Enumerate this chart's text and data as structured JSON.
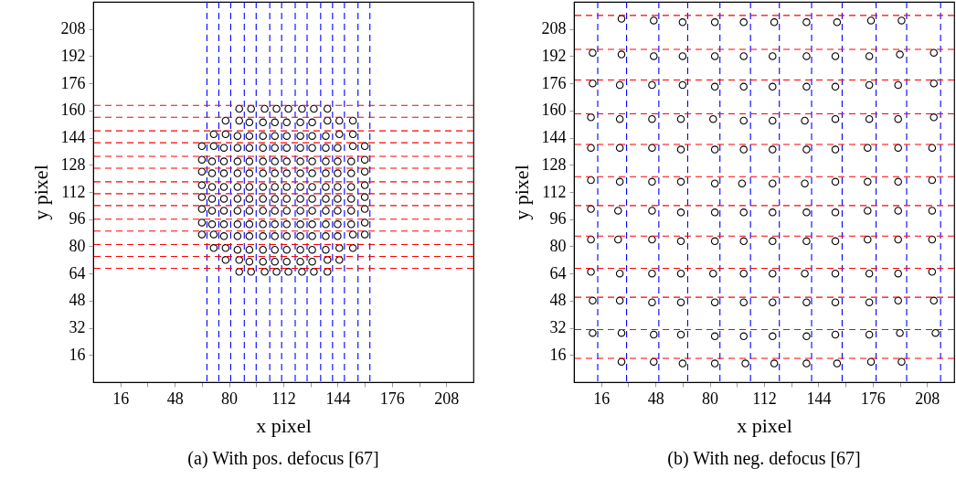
{
  "chart_data": [
    {
      "type": "scatter",
      "title": "(a) With pos. defocus [67]",
      "xlabel": "x pixel",
      "ylabel": "y pixel",
      "xlim": [
        0,
        224
      ],
      "ylim": [
        0,
        224
      ],
      "xticks": [
        16,
        {
          "value": 32,
          "label": null
        },
        48,
        {
          "value": 64,
          "label": null
        },
        80,
        {
          "value": 96,
          "label": null
        },
        112,
        {
          "value": 128,
          "label": null
        },
        144,
        {
          "value": 160,
          "label": null
        },
        176,
        {
          "value": 192,
          "label": null
        },
        208
      ],
      "yticks": [
        16,
        32,
        48,
        64,
        80,
        96,
        112,
        128,
        144,
        160,
        176,
        192,
        208
      ],
      "marker": "circle",
      "series": [
        {
          "color": "#000000",
          "x": [
            86,
            93,
            101,
            108,
            115,
            123,
            130,
            138,
            78,
            86,
            92,
            100,
            107,
            114,
            122,
            129,
            138,
            145,
            153,
            71,
            78,
            85,
            92,
            100,
            107,
            114,
            122,
            129,
            137,
            145,
            153,
            64,
            71,
            77,
            85,
            92,
            100,
            107,
            114,
            122,
            129,
            137,
            144,
            153,
            160,
            64,
            70,
            77,
            85,
            92,
            100,
            107,
            114,
            122,
            129,
            137,
            144,
            152,
            160,
            64,
            70,
            77,
            85,
            92,
            100,
            107,
            114,
            122,
            129,
            137,
            144,
            152,
            160,
            64,
            70,
            77,
            85,
            92,
            100,
            107,
            114,
            122,
            129,
            137,
            144,
            152,
            160,
            64,
            70,
            77,
            85,
            92,
            100,
            107,
            114,
            122,
            129,
            137,
            144,
            152,
            160,
            64,
            70,
            77,
            85,
            92,
            100,
            107,
            114,
            122,
            129,
            137,
            144,
            152,
            160,
            64,
            70,
            77,
            85,
            92,
            100,
            107,
            114,
            122,
            129,
            137,
            144,
            152,
            160,
            64,
            71,
            77,
            85,
            92,
            100,
            107,
            114,
            122,
            129,
            137,
            144,
            153,
            160,
            71,
            78,
            85,
            92,
            100,
            107,
            114,
            122,
            129,
            137,
            145,
            153,
            78,
            86,
            92,
            100,
            107,
            114,
            122,
            129,
            138,
            145,
            86,
            93,
            101,
            108,
            115,
            123,
            130,
            138
          ],
          "values": [
            161,
            161,
            161,
            161,
            161,
            161,
            161,
            161,
            154,
            154,
            153,
            153,
            153,
            153,
            153,
            153,
            154,
            154,
            154,
            146,
            146,
            145,
            145,
            145,
            145,
            145,
            145,
            145,
            145,
            146,
            146,
            139,
            139,
            138,
            138,
            138,
            138,
            138,
            138,
            138,
            138,
            138,
            138,
            139,
            139,
            131,
            130,
            130,
            130,
            130,
            130,
            130,
            130,
            130,
            130,
            130,
            130,
            130,
            131,
            124,
            123,
            123,
            123,
            123,
            123,
            123,
            123,
            123,
            123,
            123,
            123,
            123,
            124,
            116,
            115,
            115,
            115,
            115,
            115,
            115,
            115,
            115,
            115,
            115,
            115,
            115,
            116,
            109,
            108,
            108,
            108,
            108,
            108,
            108,
            108,
            108,
            108,
            108,
            108,
            108,
            109,
            102,
            101,
            101,
            101,
            101,
            101,
            101,
            101,
            101,
            101,
            101,
            101,
            101,
            102,
            94,
            93,
            93,
            93,
            93,
            93,
            93,
            93,
            93,
            93,
            93,
            93,
            93,
            94,
            87,
            87,
            86,
            86,
            86,
            86,
            86,
            86,
            86,
            86,
            86,
            86,
            87,
            87,
            79,
            79,
            78,
            78,
            78,
            78,
            78,
            78,
            78,
            78,
            79,
            79,
            72,
            72,
            71,
            71,
            71,
            71,
            71,
            71,
            72,
            72,
            65,
            65,
            65,
            65,
            65,
            65,
            65,
            65
          ]
        }
      ],
      "ref_lines": [
        {
          "axis": "x",
          "value": 67,
          "color": "#0000ff",
          "line_style": "dashed"
        },
        {
          "axis": "x",
          "value": 74,
          "color": "#0000ff",
          "line_style": "dashed"
        },
        {
          "axis": "x",
          "value": 81,
          "color": "#0000ff",
          "line_style": "dashed"
        },
        {
          "axis": "x",
          "value": 89,
          "color": "#0000ff",
          "line_style": "dashed"
        },
        {
          "axis": "x",
          "value": 96,
          "color": "#0000ff",
          "line_style": "dashed"
        },
        {
          "axis": "x",
          "value": 104,
          "color": "#0000ff",
          "line_style": "dashed"
        },
        {
          "axis": "x",
          "value": 111,
          "color": "#0000ff",
          "line_style": "dashed"
        },
        {
          "axis": "x",
          "value": 119,
          "color": "#0000ff",
          "line_style": "dashed"
        },
        {
          "axis": "x",
          "value": 126,
          "color": "#0000ff",
          "line_style": "dashed"
        },
        {
          "axis": "x",
          "value": 134,
          "color": "#0000ff",
          "line_style": "dashed"
        },
        {
          "axis": "x",
          "value": 141,
          "color": "#0000ff",
          "line_style": "dashed"
        },
        {
          "axis": "x",
          "value": 148,
          "color": "#0000ff",
          "line_style": "dashed"
        },
        {
          "axis": "x",
          "value": 156,
          "color": "#0000ff",
          "line_style": "dashed"
        },
        {
          "axis": "x",
          "value": 163,
          "color": "#0000ff",
          "line_style": "dashed"
        },
        {
          "axis": "y",
          "value": 67,
          "color": "#ff0000",
          "line_style": "dashed"
        },
        {
          "axis": "y",
          "value": 74,
          "color": "#ff0000",
          "line_style": "dashed"
        },
        {
          "axis": "y",
          "value": 81,
          "color": "#ff0000",
          "line_style": "dashed"
        },
        {
          "axis": "y",
          "value": 89,
          "color": "#ff0000",
          "line_style": "dashed"
        },
        {
          "axis": "y",
          "value": 96,
          "color": "#ff0000",
          "line_style": "dashed"
        },
        {
          "axis": "y",
          "value": 104,
          "color": "#ff0000",
          "line_style": "dashed"
        },
        {
          "axis": "y",
          "value": 111,
          "color": "#ff0000",
          "line_style": "dashed"
        },
        {
          "axis": "y",
          "value": 118,
          "color": "#ff0000",
          "line_style": "dashed"
        },
        {
          "axis": "y",
          "value": 126,
          "color": "#ff0000",
          "line_style": "dashed"
        },
        {
          "axis": "y",
          "value": 133,
          "color": "#ff0000",
          "line_style": "dashed"
        },
        {
          "axis": "y",
          "value": 141,
          "color": "#ff0000",
          "line_style": "dashed"
        },
        {
          "axis": "y",
          "value": 148,
          "color": "#ff0000",
          "line_style": "dashed"
        },
        {
          "axis": "y",
          "value": 156,
          "color": "#ff0000",
          "line_style": "dashed"
        },
        {
          "axis": "y",
          "value": 163,
          "color": "#ff0000",
          "line_style": "dashed"
        }
      ]
    },
    {
      "type": "scatter",
      "title": "(b) With neg. defocus [67]",
      "xlabel": "x pixel",
      "ylabel": "y pixel",
      "xlim": [
        0,
        224
      ],
      "ylim": [
        0,
        224
      ],
      "xticks": [
        16,
        {
          "value": 32,
          "label": null
        },
        48,
        {
          "value": 64,
          "label": null
        },
        80,
        {
          "value": 96,
          "label": null
        },
        112,
        {
          "value": 128,
          "label": null
        },
        144,
        {
          "value": 160,
          "label": null
        },
        176,
        {
          "value": 192,
          "label": null
        },
        208
      ],
      "yticks": [
        16,
        32,
        48,
        64,
        80,
        96,
        112,
        128,
        144,
        160,
        176,
        192,
        208
      ],
      "marker": "circle",
      "series": [
        {
          "color": "#000000",
          "x": [
            28,
            47,
            64,
            83,
            100,
            118,
            137,
            155,
            175,
            193,
            11,
            28,
            47,
            64,
            83,
            100,
            117,
            137,
            154,
            174,
            192,
            212,
            11,
            27,
            46,
            64,
            83,
            100,
            117,
            137,
            154,
            174,
            191,
            212,
            10,
            27,
            46,
            63,
            82,
            100,
            117,
            136,
            154,
            174,
            191,
            212,
            10,
            27,
            46,
            63,
            83,
            100,
            117,
            137,
            154,
            173,
            191,
            211,
            10,
            27,
            46,
            63,
            83,
            99,
            117,
            136,
            154,
            173,
            191,
            211,
            10,
            26,
            46,
            63,
            83,
            100,
            117,
            137,
            154,
            173,
            191,
            211,
            10,
            26,
            46,
            63,
            83,
            100,
            117,
            137,
            154,
            173,
            191,
            211,
            10,
            27,
            46,
            63,
            82,
            100,
            117,
            136,
            154,
            174,
            191,
            211,
            11,
            27,
            46,
            63,
            83,
            100,
            117,
            137,
            154,
            174,
            191,
            212,
            11,
            28,
            47,
            63,
            83,
            100,
            117,
            137,
            154,
            174,
            192,
            213,
            28,
            47,
            64,
            83,
            101,
            118,
            137,
            155,
            175,
            193
          ],
          "values": [
            214,
            213,
            212,
            212,
            212,
            212,
            212,
            212,
            213,
            213,
            194,
            193,
            192,
            192,
            192,
            192,
            192,
            192,
            192,
            192,
            193,
            194,
            176,
            175,
            175,
            175,
            174,
            174,
            174,
            174,
            174,
            175,
            175,
            176,
            156,
            155,
            155,
            155,
            155,
            154,
            154,
            154,
            155,
            155,
            155,
            156,
            138,
            138,
            138,
            137,
            137,
            137,
            137,
            137,
            137,
            138,
            138,
            138,
            119,
            118,
            118,
            118,
            117,
            117,
            117,
            117,
            118,
            118,
            118,
            119,
            102,
            101,
            101,
            100,
            100,
            100,
            100,
            100,
            100,
            101,
            101,
            101,
            84,
            84,
            84,
            83,
            83,
            83,
            83,
            83,
            83,
            84,
            84,
            84,
            65,
            64,
            64,
            64,
            64,
            64,
            64,
            64,
            64,
            64,
            64,
            65,
            48,
            48,
            47,
            47,
            47,
            47,
            47,
            47,
            47,
            47,
            48,
            48,
            29,
            29,
            28,
            28,
            27,
            27,
            27,
            27,
            28,
            28,
            29,
            29,
            12,
            12,
            11,
            11,
            11,
            11,
            11,
            11,
            12,
            12
          ]
        }
      ],
      "ref_lines": [
        {
          "axis": "x",
          "value": 14,
          "color": "#0000ff",
          "line_style": "dashed"
        },
        {
          "axis": "x",
          "value": 31,
          "color": "#0000ff",
          "line_style": "dashed"
        },
        {
          "axis": "x",
          "value": 50,
          "color": "#0000ff",
          "line_style": "dashed"
        },
        {
          "axis": "x",
          "value": 67,
          "color": "#0000ff",
          "line_style": "dashed"
        },
        {
          "axis": "x",
          "value": 86,
          "color": "#0000ff",
          "line_style": "dashed"
        },
        {
          "axis": "x",
          "value": 104,
          "color": "#0000ff",
          "line_style": "dashed"
        },
        {
          "axis": "x",
          "value": 121,
          "color": "#0000ff",
          "line_style": "dashed"
        },
        {
          "axis": "x",
          "value": 140,
          "color": "#0000ff",
          "line_style": "dashed"
        },
        {
          "axis": "x",
          "value": 158,
          "color": "#0000ff",
          "line_style": "dashed"
        },
        {
          "axis": "x",
          "value": 178,
          "color": "#0000ff",
          "line_style": "dashed"
        },
        {
          "axis": "x",
          "value": 196,
          "color": "#0000ff",
          "line_style": "dashed"
        },
        {
          "axis": "x",
          "value": 216,
          "color": "#0000ff",
          "line_style": "dashed"
        },
        {
          "axis": "y",
          "value": 14,
          "color": "#ff0000",
          "line_style": "dashed"
        },
        {
          "axis": "y",
          "value": 31,
          "color": "#ff0000",
          "line_style": "dashed"
        },
        {
          "axis": "y",
          "value": 50,
          "color": "#ff0000",
          "line_style": "dashed"
        },
        {
          "axis": "y",
          "value": 67,
          "color": "#ff0000",
          "line_style": "dashed"
        },
        {
          "axis": "y",
          "value": 86,
          "color": "#ff0000",
          "line_style": "dashed"
        },
        {
          "axis": "y",
          "value": 104,
          "color": "#ff0000",
          "line_style": "dashed"
        },
        {
          "axis": "y",
          "value": 121,
          "color": "#ff0000",
          "line_style": "dashed"
        },
        {
          "axis": "y",
          "value": 140,
          "color": "#ff0000",
          "line_style": "dashed"
        },
        {
          "axis": "y",
          "value": 158,
          "color": "#ff0000",
          "line_style": "dashed"
        },
        {
          "axis": "y",
          "value": 178,
          "color": "#ff0000",
          "line_style": "dashed"
        },
        {
          "axis": "y",
          "value": 196,
          "color": "#ff0000",
          "line_style": "dashed"
        },
        {
          "axis": "y",
          "value": 216,
          "color": "#ff0000",
          "line_style": "dashed"
        }
      ]
    }
  ]
}
